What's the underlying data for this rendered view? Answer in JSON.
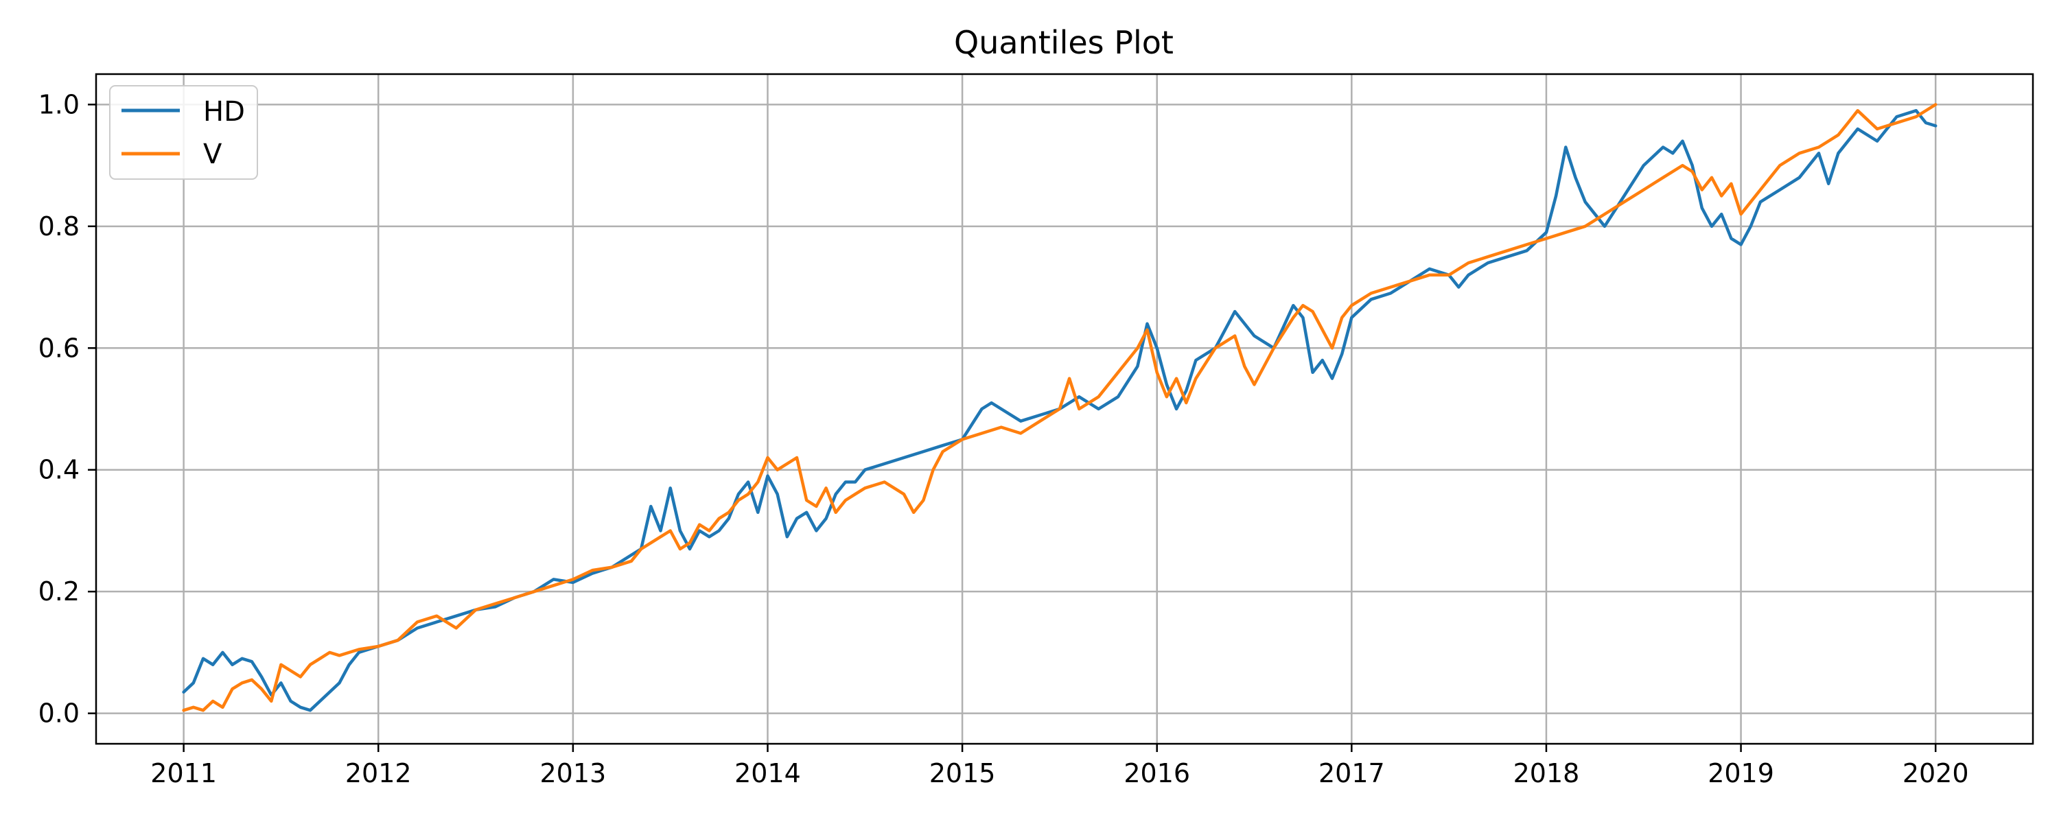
{
  "chart_data": {
    "type": "line",
    "title": "Quantiles Plot",
    "xlabel": "",
    "ylabel": "",
    "x_ticks": [
      "2011",
      "2012",
      "2013",
      "2014",
      "2015",
      "2016",
      "2017",
      "2018",
      "2019",
      "2020"
    ],
    "y_ticks": [
      "0.0",
      "0.2",
      "0.4",
      "0.6",
      "0.8",
      "1.0"
    ],
    "xlim": [
      2010.55,
      2020.5
    ],
    "ylim": [
      -0.05,
      1.05
    ],
    "grid": true,
    "legend_position": "top-left",
    "colors": {
      "HD": "#1f77b4",
      "V": "#ff7f0e",
      "grid": "#b0b0b0",
      "axes": "#000000"
    },
    "series": [
      {
        "name": "HD",
        "x": [
          2011.0,
          2011.05,
          2011.1,
          2011.15,
          2011.2,
          2011.25,
          2011.3,
          2011.35,
          2011.4,
          2011.45,
          2011.5,
          2011.55,
          2011.6,
          2011.65,
          2011.7,
          2011.75,
          2011.8,
          2011.85,
          2011.9,
          2012.0,
          2012.1,
          2012.2,
          2012.3,
          2012.4,
          2012.5,
          2012.6,
          2012.7,
          2012.8,
          2012.9,
          2013.0,
          2013.1,
          2013.2,
          2013.3,
          2013.35,
          2013.4,
          2013.45,
          2013.5,
          2013.55,
          2013.6,
          2013.65,
          2013.7,
          2013.75,
          2013.8,
          2013.85,
          2013.9,
          2013.95,
          2014.0,
          2014.05,
          2014.1,
          2014.15,
          2014.2,
          2014.25,
          2014.3,
          2014.35,
          2014.4,
          2014.45,
          2014.5,
          2014.6,
          2014.7,
          2014.8,
          2014.9,
          2015.0,
          2015.1,
          2015.15,
          2015.2,
          2015.3,
          2015.4,
          2015.5,
          2015.6,
          2015.7,
          2015.8,
          2015.9,
          2015.95,
          2016.0,
          2016.05,
          2016.1,
          2016.15,
          2016.2,
          2016.3,
          2016.4,
          2016.5,
          2016.6,
          2016.7,
          2016.75,
          2016.8,
          2016.85,
          2016.9,
          2016.95,
          2017.0,
          2017.1,
          2017.2,
          2017.3,
          2017.4,
          2017.5,
          2017.55,
          2017.6,
          2017.7,
          2017.8,
          2017.9,
          2018.0,
          2018.05,
          2018.1,
          2018.15,
          2018.2,
          2018.3,
          2018.4,
          2018.5,
          2018.6,
          2018.65,
          2018.7,
          2018.75,
          2018.8,
          2018.85,
          2018.9,
          2018.95,
          2019.0,
          2019.05,
          2019.1,
          2019.2,
          2019.3,
          2019.4,
          2019.45,
          2019.5,
          2019.6,
          2019.7,
          2019.8,
          2019.9,
          2019.95,
          2020.0
        ],
        "values": [
          0.035,
          0.05,
          0.09,
          0.08,
          0.1,
          0.08,
          0.09,
          0.085,
          0.06,
          0.03,
          0.05,
          0.02,
          0.01,
          0.005,
          0.02,
          0.035,
          0.05,
          0.08,
          0.1,
          0.11,
          0.12,
          0.14,
          0.15,
          0.16,
          0.17,
          0.175,
          0.19,
          0.2,
          0.22,
          0.215,
          0.23,
          0.24,
          0.26,
          0.27,
          0.34,
          0.3,
          0.37,
          0.3,
          0.27,
          0.3,
          0.29,
          0.3,
          0.32,
          0.36,
          0.38,
          0.33,
          0.39,
          0.36,
          0.29,
          0.32,
          0.33,
          0.3,
          0.32,
          0.36,
          0.38,
          0.38,
          0.4,
          0.41,
          0.42,
          0.43,
          0.44,
          0.45,
          0.5,
          0.51,
          0.5,
          0.48,
          0.49,
          0.5,
          0.52,
          0.5,
          0.52,
          0.57,
          0.64,
          0.6,
          0.54,
          0.5,
          0.53,
          0.58,
          0.6,
          0.66,
          0.62,
          0.6,
          0.67,
          0.65,
          0.56,
          0.58,
          0.55,
          0.59,
          0.65,
          0.68,
          0.69,
          0.71,
          0.73,
          0.72,
          0.7,
          0.72,
          0.74,
          0.75,
          0.76,
          0.79,
          0.85,
          0.93,
          0.88,
          0.84,
          0.8,
          0.85,
          0.9,
          0.93,
          0.92,
          0.94,
          0.9,
          0.83,
          0.8,
          0.82,
          0.78,
          0.77,
          0.8,
          0.84,
          0.86,
          0.88,
          0.92,
          0.87,
          0.92,
          0.96,
          0.94,
          0.98,
          0.99,
          0.97,
          0.965
        ]
      },
      {
        "name": "V",
        "x": [
          2011.0,
          2011.05,
          2011.1,
          2011.15,
          2011.2,
          2011.25,
          2011.3,
          2011.35,
          2011.4,
          2011.45,
          2011.5,
          2011.55,
          2011.6,
          2011.65,
          2011.7,
          2011.75,
          2011.8,
          2011.85,
          2011.9,
          2012.0,
          2012.1,
          2012.2,
          2012.3,
          2012.4,
          2012.5,
          2012.6,
          2012.7,
          2012.8,
          2012.9,
          2013.0,
          2013.1,
          2013.2,
          2013.3,
          2013.35,
          2013.4,
          2013.45,
          2013.5,
          2013.55,
          2013.6,
          2013.65,
          2013.7,
          2013.75,
          2013.8,
          2013.85,
          2013.9,
          2013.95,
          2014.0,
          2014.05,
          2014.1,
          2014.15,
          2014.2,
          2014.25,
          2014.3,
          2014.35,
          2014.4,
          2014.45,
          2014.5,
          2014.6,
          2014.7,
          2014.75,
          2014.8,
          2014.85,
          2014.9,
          2015.0,
          2015.1,
          2015.2,
          2015.3,
          2015.4,
          2015.5,
          2015.55,
          2015.6,
          2015.7,
          2015.8,
          2015.9,
          2015.95,
          2016.0,
          2016.05,
          2016.1,
          2016.15,
          2016.2,
          2016.3,
          2016.4,
          2016.45,
          2016.5,
          2016.6,
          2016.7,
          2016.75,
          2016.8,
          2016.85,
          2016.9,
          2016.95,
          2017.0,
          2017.1,
          2017.2,
          2017.3,
          2017.4,
          2017.5,
          2017.6,
          2017.7,
          2017.8,
          2017.9,
          2018.0,
          2018.1,
          2018.2,
          2018.3,
          2018.4,
          2018.5,
          2018.6,
          2018.7,
          2018.75,
          2018.8,
          2018.85,
          2018.9,
          2018.95,
          2019.0,
          2019.05,
          2019.1,
          2019.2,
          2019.3,
          2019.4,
          2019.5,
          2019.55,
          2019.6,
          2019.7,
          2019.8,
          2019.9,
          2020.0
        ],
        "values": [
          0.005,
          0.01,
          0.005,
          0.02,
          0.01,
          0.04,
          0.05,
          0.055,
          0.04,
          0.02,
          0.08,
          0.07,
          0.06,
          0.08,
          0.09,
          0.1,
          0.095,
          0.1,
          0.105,
          0.11,
          0.12,
          0.15,
          0.16,
          0.14,
          0.17,
          0.18,
          0.19,
          0.2,
          0.21,
          0.22,
          0.235,
          0.24,
          0.25,
          0.27,
          0.28,
          0.29,
          0.3,
          0.27,
          0.28,
          0.31,
          0.3,
          0.32,
          0.33,
          0.35,
          0.36,
          0.38,
          0.42,
          0.4,
          0.41,
          0.42,
          0.35,
          0.34,
          0.37,
          0.33,
          0.35,
          0.36,
          0.37,
          0.38,
          0.36,
          0.33,
          0.35,
          0.4,
          0.43,
          0.45,
          0.46,
          0.47,
          0.46,
          0.48,
          0.5,
          0.55,
          0.5,
          0.52,
          0.56,
          0.6,
          0.63,
          0.56,
          0.52,
          0.55,
          0.51,
          0.55,
          0.6,
          0.62,
          0.57,
          0.54,
          0.6,
          0.65,
          0.67,
          0.66,
          0.63,
          0.6,
          0.65,
          0.67,
          0.69,
          0.7,
          0.71,
          0.72,
          0.72,
          0.74,
          0.75,
          0.76,
          0.77,
          0.78,
          0.79,
          0.8,
          0.82,
          0.84,
          0.86,
          0.88,
          0.9,
          0.89,
          0.86,
          0.88,
          0.85,
          0.87,
          0.82,
          0.84,
          0.86,
          0.9,
          0.92,
          0.93,
          0.95,
          0.97,
          0.99,
          0.96,
          0.97,
          0.98,
          1.0
        ]
      }
    ]
  }
}
